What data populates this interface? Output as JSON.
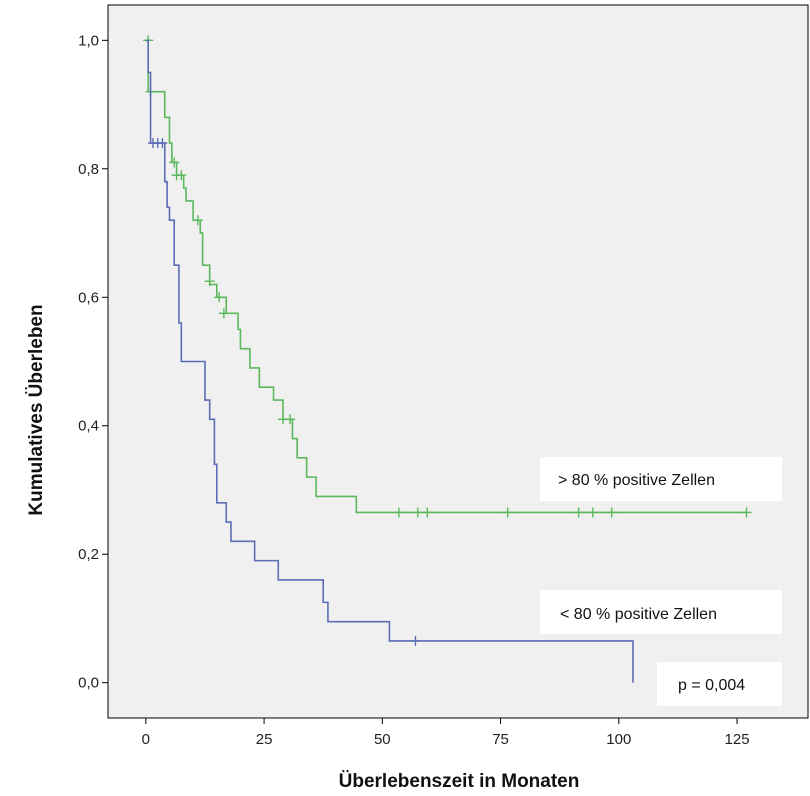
{
  "chart_data": {
    "type": "line",
    "title": "",
    "xlabel": "Überlebenszeit in Monaten",
    "ylabel": "Kumulatives Überleben",
    "xlim": [
      -8,
      140
    ],
    "ylim": [
      -0.055,
      1.055
    ],
    "xticks": [
      0,
      25,
      50,
      75,
      100,
      125
    ],
    "xtick_labels": [
      "0",
      "25",
      "50",
      "75",
      "100",
      "125"
    ],
    "yticks": [
      0.0,
      0.2,
      0.4,
      0.6,
      0.8,
      1.0
    ],
    "ytick_labels": [
      "0,0",
      "0,2",
      "0,4",
      "0,6",
      "0,8",
      "1,0"
    ],
    "plot_background": "#f0f0f0",
    "grid": false,
    "step": true,
    "series": [
      {
        "name": "> 80 % positive Zellen",
        "color": "#5cb85c",
        "steps": [
          [
            0,
            1.0
          ],
          [
            0.5,
            0.92
          ],
          [
            4,
            0.88
          ],
          [
            5,
            0.84
          ],
          [
            5.5,
            0.81
          ],
          [
            6.5,
            0.79
          ],
          [
            8,
            0.77
          ],
          [
            8.5,
            0.75
          ],
          [
            10,
            0.72
          ],
          [
            11.5,
            0.7
          ],
          [
            12,
            0.65
          ],
          [
            13.5,
            0.62
          ],
          [
            15,
            0.6
          ],
          [
            17,
            0.575
          ],
          [
            19.5,
            0.55
          ],
          [
            20,
            0.52
          ],
          [
            22,
            0.49
          ],
          [
            24,
            0.46
          ],
          [
            27,
            0.44
          ],
          [
            29,
            0.41
          ],
          [
            31,
            0.38
          ],
          [
            32,
            0.35
          ],
          [
            34,
            0.32
          ],
          [
            36,
            0.29
          ],
          [
            44.5,
            0.265
          ],
          [
            127,
            0.265
          ]
        ],
        "censored": [
          [
            0.5,
            1.0
          ],
          [
            1,
            0.92
          ],
          [
            6,
            0.81
          ],
          [
            6.5,
            0.79
          ],
          [
            7.5,
            0.79
          ],
          [
            11,
            0.72
          ],
          [
            13.5,
            0.625
          ],
          [
            15.5,
            0.6
          ],
          [
            16.5,
            0.575
          ],
          [
            29,
            0.41
          ],
          [
            30.5,
            0.41
          ],
          [
            53.5,
            0.265
          ],
          [
            57.5,
            0.265
          ],
          [
            59.5,
            0.265
          ],
          [
            76.5,
            0.265
          ],
          [
            91.5,
            0.265
          ],
          [
            94.5,
            0.265
          ],
          [
            98.5,
            0.265
          ],
          [
            127,
            0.265
          ]
        ]
      },
      {
        "name": "< 80 % positive Zellen",
        "color": "#5b6eb5",
        "steps": [
          [
            0,
            1.0
          ],
          [
            0.5,
            0.95
          ],
          [
            1,
            0.84
          ],
          [
            4,
            0.78
          ],
          [
            4.5,
            0.74
          ],
          [
            5,
            0.72
          ],
          [
            6,
            0.65
          ],
          [
            7,
            0.56
          ],
          [
            7.5,
            0.5
          ],
          [
            12.5,
            0.44
          ],
          [
            13.5,
            0.41
          ],
          [
            14.5,
            0.34
          ],
          [
            15,
            0.28
          ],
          [
            17,
            0.25
          ],
          [
            18,
            0.22
          ],
          [
            21,
            0.22
          ],
          [
            23,
            0.19
          ],
          [
            28,
            0.16
          ],
          [
            37.5,
            0.125
          ],
          [
            38.5,
            0.095
          ],
          [
            51.5,
            0.065
          ],
          [
            103,
            0.065
          ],
          [
            103,
            0.0
          ]
        ],
        "censored": [
          [
            1.5,
            0.84
          ],
          [
            2.5,
            0.84
          ],
          [
            3.5,
            0.84
          ],
          [
            57,
            0.065
          ]
        ]
      }
    ],
    "annotations": [
      "p = 0,004"
    ]
  }
}
